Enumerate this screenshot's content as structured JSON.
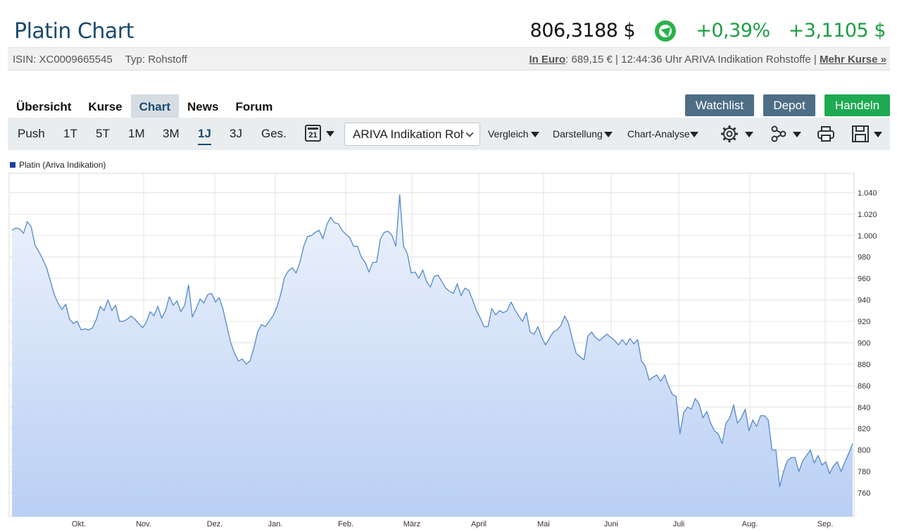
{
  "header": {
    "title": "Platin Chart",
    "price": "806,3188 $",
    "change_pct": "+0,39%",
    "change_abs": "+3,1105 $"
  },
  "info": {
    "isin": "ISIN: XC0009665545",
    "typ": "Typ: Rohstoff",
    "euro_label": "In Euro",
    "euro_rest": ": 689,15 € | 12:44:36 Uhr ARIVA Indikation Rohstoffe | ",
    "more": "Mehr Kurse »"
  },
  "tabs": [
    "Übersicht",
    "Kurse",
    "Chart",
    "News",
    "Forum"
  ],
  "active_tab": "Chart",
  "buttons": {
    "watchlist": "Watchlist",
    "depot": "Depot",
    "handeln": "Handeln"
  },
  "ranges": [
    "Push",
    "1T",
    "5T",
    "1M",
    "3M",
    "1J",
    "3J",
    "Ges."
  ],
  "active_range": "1J",
  "calendar_day": "21",
  "source_select": "ARIVA Indikation Rohstoffe",
  "menus": {
    "vergleich": "Vergleich",
    "darstellung": "Darstellung",
    "analyse": "Chart-Analyse"
  },
  "icons": [
    "calendar-icon",
    "gear-icon",
    "indicators-icon",
    "print-icon",
    "save-icon"
  ],
  "colors": {
    "line": "#5b8fd0",
    "area_top": "#eef3fc",
    "area_bottom": "#b9cff4",
    "legend": "#1e3f9e"
  },
  "chart_data": {
    "type": "area",
    "series": [
      {
        "name": "Platin (Ariva Indikation)"
      }
    ],
    "x_ticks": [
      "Okt.",
      "Nov.",
      "Dez.",
      "Jan.",
      "Feb.",
      "März",
      "April",
      "Mai",
      "Juni",
      "Juli",
      "Aug.",
      "Sep."
    ],
    "y_ticks": [
      760,
      780,
      800,
      820,
      840,
      860,
      880,
      900,
      920,
      940,
      960,
      980,
      1000,
      1020,
      1040
    ],
    "y_labels": [
      "760",
      "780",
      "800",
      "820",
      "840",
      "860",
      "880",
      "900",
      "920",
      "940",
      "960",
      "980",
      "1.000",
      "1.020",
      "1.040"
    ],
    "ylim": [
      738,
      1058
    ],
    "grid": true,
    "legend_position": "top-left",
    "points": [
      [
        0,
        1005
      ],
      [
        1,
        1007
      ],
      [
        2,
        1006
      ],
      [
        3,
        1002
      ],
      [
        4,
        1013
      ],
      [
        5,
        1008
      ],
      [
        6,
        991
      ],
      [
        7,
        985
      ],
      [
        8,
        978
      ],
      [
        9,
        970
      ],
      [
        10,
        958
      ],
      [
        11,
        945
      ],
      [
        12,
        937
      ],
      [
        13,
        931
      ],
      [
        14,
        936
      ],
      [
        15,
        922
      ],
      [
        16,
        918
      ],
      [
        17,
        920
      ],
      [
        18,
        912
      ],
      [
        19,
        913
      ],
      [
        20,
        912
      ],
      [
        21,
        914
      ],
      [
        22,
        922
      ],
      [
        23,
        934
      ],
      [
        24,
        930
      ],
      [
        25,
        940
      ],
      [
        26,
        930
      ],
      [
        27,
        935
      ],
      [
        28,
        920
      ],
      [
        29,
        920
      ],
      [
        30,
        922
      ],
      [
        31,
        925
      ],
      [
        32,
        922
      ],
      [
        33,
        918
      ],
      [
        34,
        914
      ],
      [
        35,
        919
      ],
      [
        36,
        929
      ],
      [
        37,
        925
      ],
      [
        38,
        934
      ],
      [
        39,
        923
      ],
      [
        40,
        930
      ],
      [
        41,
        943
      ],
      [
        42,
        935
      ],
      [
        43,
        939
      ],
      [
        44,
        929
      ],
      [
        45,
        935
      ],
      [
        46,
        954
      ],
      [
        47,
        924
      ],
      [
        48,
        932
      ],
      [
        49,
        941
      ],
      [
        50,
        937
      ],
      [
        51,
        945
      ],
      [
        52,
        946
      ],
      [
        53,
        938
      ],
      [
        54,
        942
      ],
      [
        55,
        931
      ],
      [
        56,
        915
      ],
      [
        57,
        900
      ],
      [
        58,
        890
      ],
      [
        59,
        883
      ],
      [
        60,
        885
      ],
      [
        61,
        880
      ],
      [
        62,
        883
      ],
      [
        63,
        895
      ],
      [
        64,
        910
      ],
      [
        65,
        917
      ],
      [
        66,
        915
      ],
      [
        67,
        920
      ],
      [
        68,
        925
      ],
      [
        69,
        933
      ],
      [
        70,
        945
      ],
      [
        71,
        961
      ],
      [
        72,
        967
      ],
      [
        73,
        970
      ],
      [
        74,
        965
      ],
      [
        75,
        975
      ],
      [
        76,
        990
      ],
      [
        77,
        999
      ],
      [
        78,
        1000
      ],
      [
        79,
        1003
      ],
      [
        80,
        1005
      ],
      [
        81,
        997
      ],
      [
        82,
        1010
      ],
      [
        83,
        1017
      ],
      [
        84,
        1012
      ],
      [
        85,
        1011
      ],
      [
        86,
        1005
      ],
      [
        87,
        1001
      ],
      [
        88,
        998
      ],
      [
        89,
        990
      ],
      [
        90,
        990
      ],
      [
        91,
        980
      ],
      [
        92,
        975
      ],
      [
        93,
        966
      ],
      [
        94,
        975
      ],
      [
        95,
        975
      ],
      [
        96,
        997
      ],
      [
        97,
        1003
      ],
      [
        98,
        1004
      ],
      [
        99,
        1000
      ],
      [
        100,
        990
      ],
      [
        101,
        1038
      ],
      [
        102,
        990
      ],
      [
        103,
        983
      ],
      [
        104,
        965
      ],
      [
        105,
        966
      ],
      [
        106,
        960
      ],
      [
        107,
        968
      ],
      [
        108,
        957
      ],
      [
        109,
        952
      ],
      [
        110,
        962
      ],
      [
        111,
        963
      ],
      [
        112,
        957
      ],
      [
        113,
        951
      ],
      [
        114,
        948
      ],
      [
        115,
        946
      ],
      [
        116,
        955
      ],
      [
        117,
        944
      ],
      [
        118,
        951
      ],
      [
        119,
        949
      ],
      [
        120,
        940
      ],
      [
        121,
        930
      ],
      [
        122,
        923
      ],
      [
        123,
        915
      ],
      [
        124,
        915
      ],
      [
        125,
        932
      ],
      [
        126,
        926
      ],
      [
        127,
        930
      ],
      [
        128,
        928
      ],
      [
        129,
        930
      ],
      [
        130,
        938
      ],
      [
        131,
        931
      ],
      [
        132,
        925
      ],
      [
        133,
        920
      ],
      [
        134,
        928
      ],
      [
        135,
        910
      ],
      [
        136,
        908
      ],
      [
        137,
        915
      ],
      [
        138,
        905
      ],
      [
        139,
        898
      ],
      [
        140,
        904
      ],
      [
        141,
        910
      ],
      [
        142,
        912
      ],
      [
        143,
        916
      ],
      [
        144,
        925
      ],
      [
        145,
        918
      ],
      [
        146,
        903
      ],
      [
        147,
        890
      ],
      [
        148,
        887
      ],
      [
        149,
        884
      ],
      [
        150,
        906
      ],
      [
        151,
        910
      ],
      [
        152,
        905
      ],
      [
        153,
        902
      ],
      [
        154,
        905
      ],
      [
        155,
        908
      ],
      [
        156,
        905
      ],
      [
        157,
        902
      ],
      [
        158,
        898
      ],
      [
        159,
        903
      ],
      [
        160,
        898
      ],
      [
        161,
        904
      ],
      [
        162,
        899
      ],
      [
        163,
        903
      ],
      [
        164,
        883
      ],
      [
        165,
        878
      ],
      [
        166,
        865
      ],
      [
        167,
        868
      ],
      [
        168,
        870
      ],
      [
        169,
        864
      ],
      [
        170,
        870
      ],
      [
        171,
        860
      ],
      [
        172,
        852
      ],
      [
        173,
        850
      ],
      [
        174,
        815
      ],
      [
        175,
        835
      ],
      [
        176,
        840
      ],
      [
        177,
        838
      ],
      [
        178,
        848
      ],
      [
        179,
        843
      ],
      [
        180,
        830
      ],
      [
        181,
        836
      ],
      [
        182,
        825
      ],
      [
        183,
        818
      ],
      [
        184,
        815
      ],
      [
        185,
        806
      ],
      [
        186,
        825
      ],
      [
        187,
        830
      ],
      [
        188,
        842
      ],
      [
        189,
        825
      ],
      [
        190,
        830
      ],
      [
        191,
        838
      ],
      [
        192,
        818
      ],
      [
        193,
        828
      ],
      [
        194,
        822
      ],
      [
        195,
        832
      ],
      [
        196,
        832
      ],
      [
        197,
        828
      ],
      [
        198,
        800
      ],
      [
        199,
        800
      ],
      [
        200,
        766
      ],
      [
        201,
        780
      ],
      [
        202,
        790
      ],
      [
        203,
        793
      ],
      [
        204,
        793
      ],
      [
        205,
        780
      ],
      [
        206,
        790
      ],
      [
        207,
        795
      ],
      [
        208,
        800
      ],
      [
        209,
        788
      ],
      [
        210,
        795
      ],
      [
        211,
        786
      ],
      [
        212,
        789
      ],
      [
        213,
        778
      ],
      [
        214,
        785
      ],
      [
        215,
        789
      ],
      [
        216,
        780
      ],
      [
        217,
        789
      ],
      [
        218,
        797
      ],
      [
        219,
        806
      ]
    ]
  }
}
